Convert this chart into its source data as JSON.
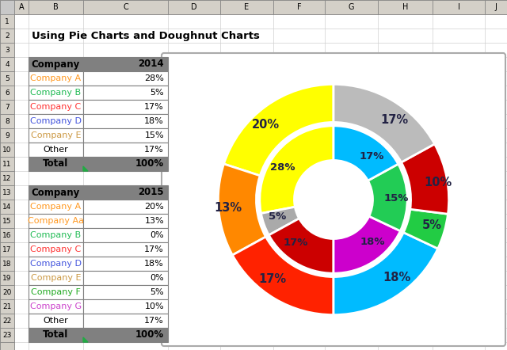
{
  "title": "Using Pie Charts and Doughnut Charts",
  "inner_values": [
    28,
    5,
    17,
    18,
    15,
    17
  ],
  "inner_labels": [
    "28%",
    "5%",
    "17%",
    "18%",
    "15%",
    "17%"
  ],
  "inner_colors": [
    "#FFFF00",
    "#AAAAAA",
    "#CC0000",
    "#CC00CC",
    "#22CC55",
    "#00BBFF"
  ],
  "outer_values": [
    20,
    13,
    17,
    18,
    5,
    10,
    17
  ],
  "outer_labels": [
    "20%",
    "13%",
    "17%",
    "18%",
    "5%",
    "10%",
    "17%"
  ],
  "outer_colors": [
    "#FFFF00",
    "#FF8800",
    "#FF2200",
    "#00BBFF",
    "#22CC44",
    "#CC0000",
    "#BBBBBB"
  ],
  "start_angle": 90,
  "companies_2014": [
    "Company A",
    "Company B",
    "Company C",
    "Company D",
    "Company E",
    "Other"
  ],
  "values_2014": [
    "28%",
    "5%",
    "17%",
    "18%",
    "15%",
    "17%"
  ],
  "text_colors_2014": [
    "#FF9922",
    "#22BB55",
    "#FF3333",
    "#4455DD",
    "#CC9944",
    "#000000"
  ],
  "companies_2015": [
    "Company A",
    "Company Aa",
    "Company B",
    "Company C",
    "Company D",
    "Company E",
    "Company F",
    "Company G",
    "Other"
  ],
  "values_2015": [
    "20%",
    "13%",
    "0%",
    "17%",
    "18%",
    "0%",
    "5%",
    "10%",
    "17%"
  ],
  "text_colors_2015": [
    "#FF9922",
    "#FF9922",
    "#22BB55",
    "#FF3333",
    "#4455DD",
    "#CC9944",
    "#22AA22",
    "#CC44CC",
    "#000000"
  ],
  "excel_bg": "#D4D0C8",
  "cell_bg": "#FFFFFF",
  "header_bg": "#808080",
  "grid_color": "#A0A0A0",
  "row_header_bg": "#E0E0E0",
  "chart_bg": "#FFFFFF",
  "chart_border": "#CCCCCC"
}
